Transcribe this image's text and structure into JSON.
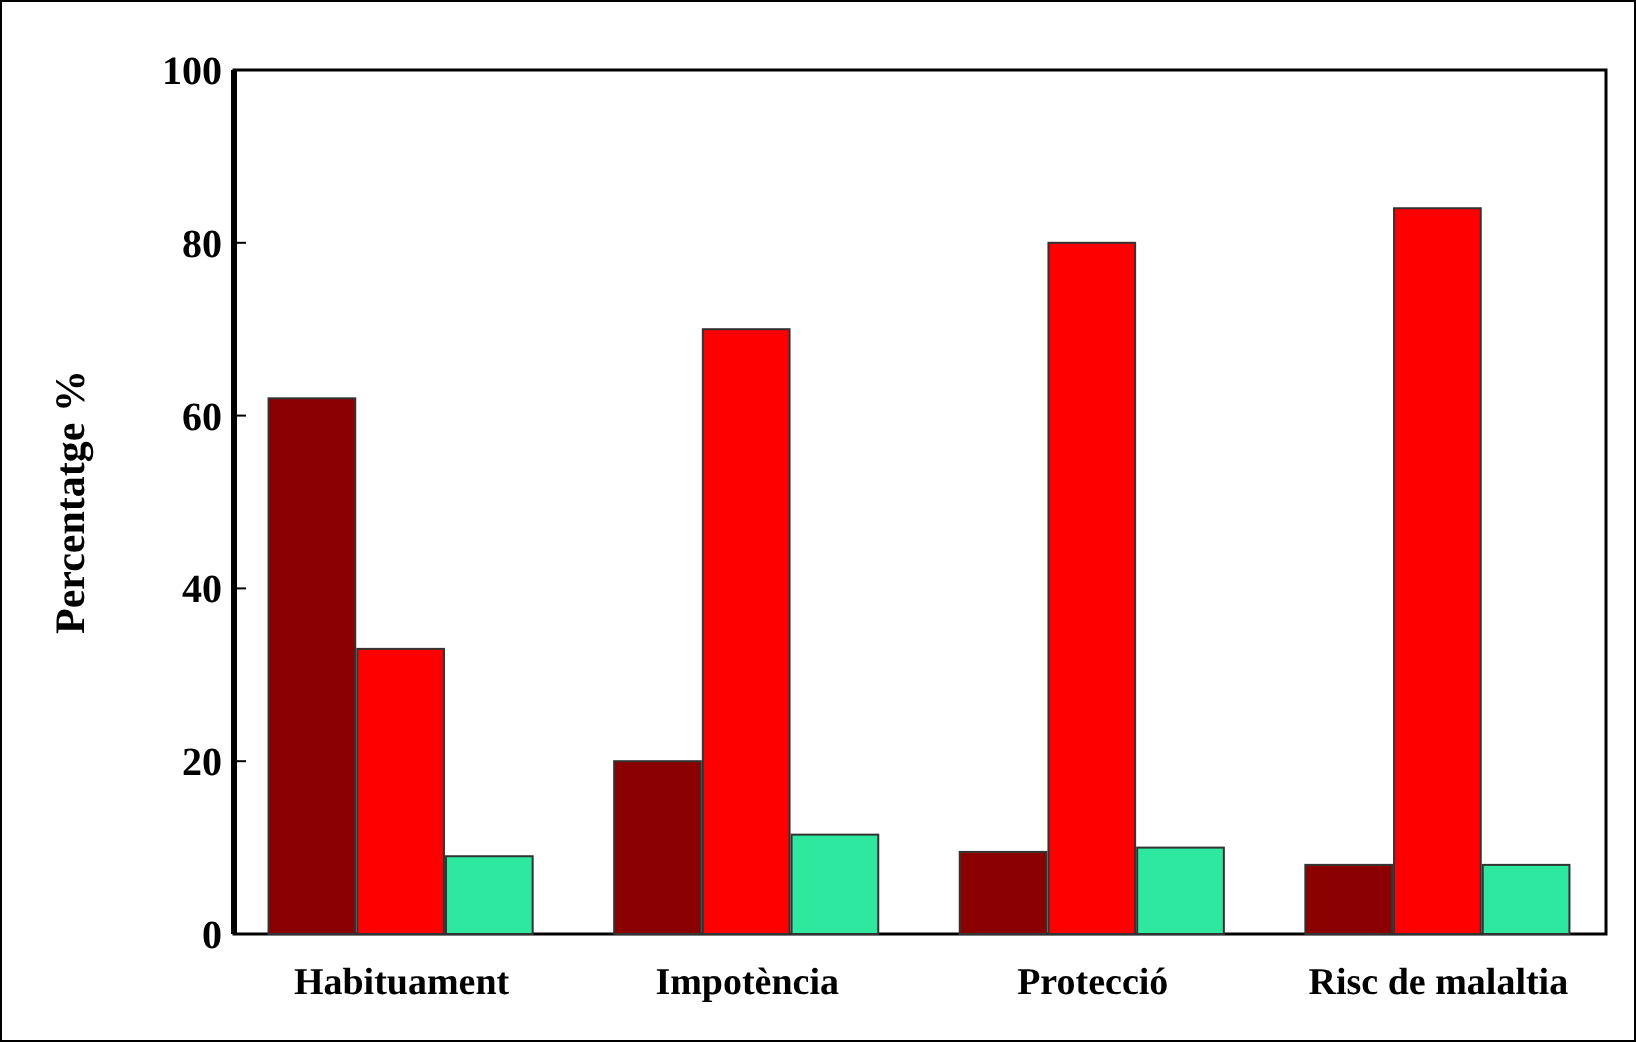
{
  "chart_data": {
    "type": "bar",
    "ylabel": "Percentatge %",
    "categories": [
      "Habituament",
      "Impotència",
      "Protecció",
      "Risc de malaltia"
    ],
    "series": [
      {
        "color": "#8b0000",
        "values": [
          62,
          20,
          9.5,
          8
        ]
      },
      {
        "color": "#ff0000",
        "values": [
          33,
          70,
          80,
          84
        ]
      },
      {
        "color": "#2ee8a0",
        "values": [
          9,
          11.5,
          10,
          8
        ]
      }
    ],
    "ylim": [
      0,
      100
    ],
    "yticks": [
      0,
      20,
      40,
      60,
      80,
      100
    ],
    "grid": false
  }
}
